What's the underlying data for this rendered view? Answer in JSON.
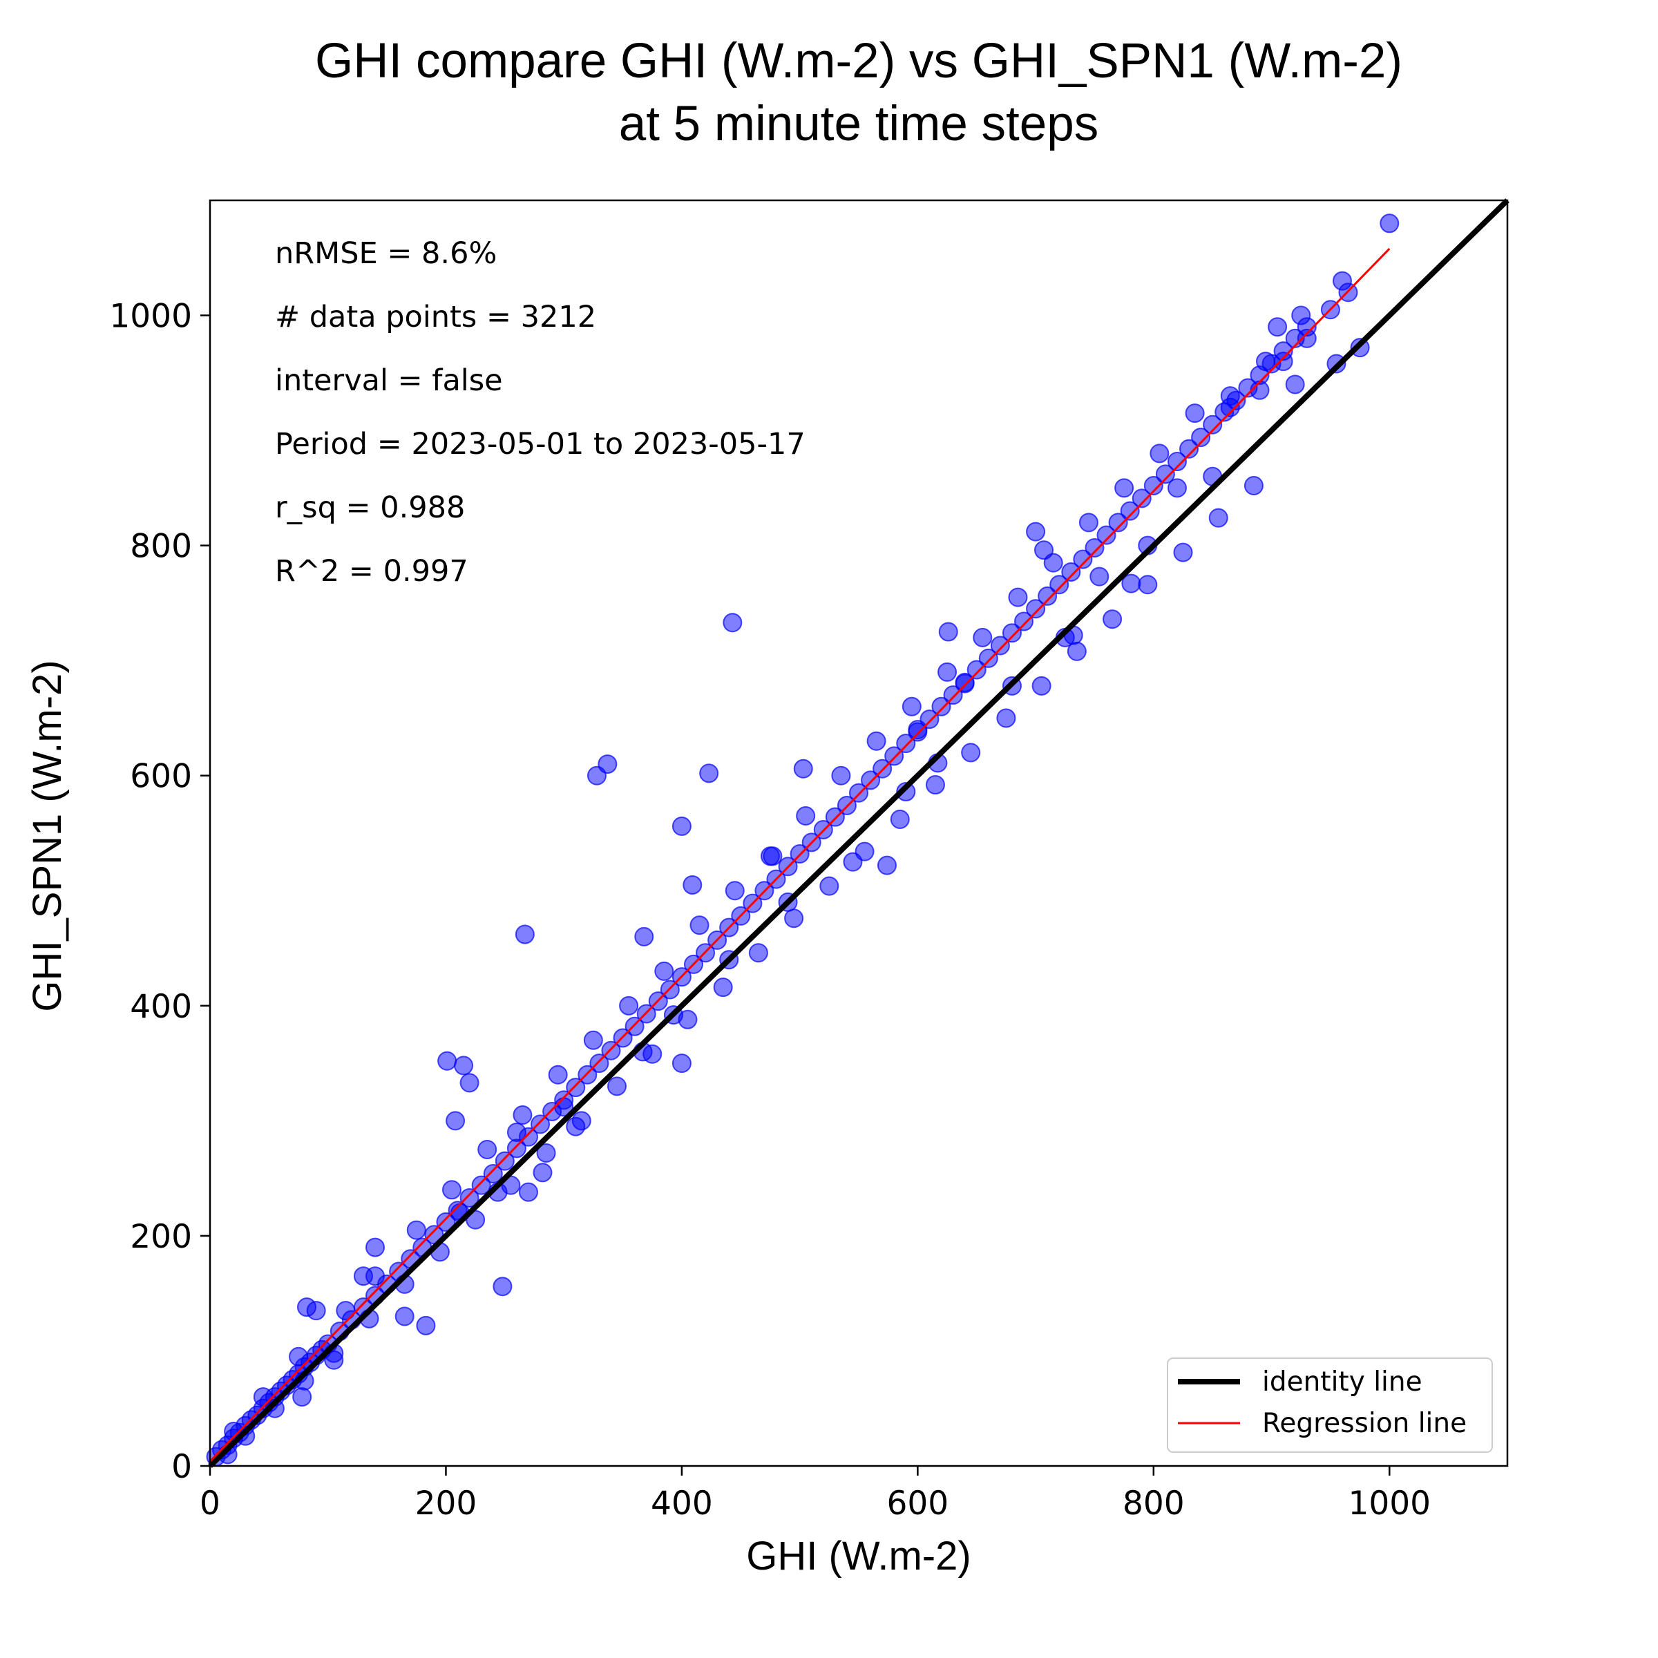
{
  "chart_data": {
    "type": "scatter",
    "title_lines": [
      "GHI compare GHI (W.m-2) vs GHI_SPN1 (W.m-2)",
      "at 5 minute time steps"
    ],
    "xlabel": "GHI (W.m-2)",
    "ylabel": "GHI_SPN1 (W.m-2)",
    "xlim": [
      0,
      1100
    ],
    "ylim": [
      0,
      1100
    ],
    "xticks": [
      0,
      200,
      400,
      600,
      800,
      1000
    ],
    "yticks": [
      0,
      200,
      400,
      600,
      800,
      1000
    ],
    "xtick_labels": [
      "0",
      "200",
      "400",
      "600",
      "800",
      "1000"
    ],
    "ytick_labels": [
      "0",
      "200",
      "400",
      "600",
      "800",
      "1000"
    ],
    "grid": false,
    "legend_position": "lower-right",
    "marker_color": "#0000ff",
    "annotations": [
      "nRMSE = 8.6%",
      "# data points = 3212",
      "interval = false",
      "Period = 2023-05-01 to 2023-05-17",
      "r_sq = 0.988",
      "R^2 = 0.997"
    ],
    "series": [
      {
        "name": "identity line",
        "kind": "line",
        "color": "#000000",
        "x": [
          0,
          1100
        ],
        "y": [
          0,
          1100
        ]
      },
      {
        "name": "Regression line",
        "kind": "line",
        "color": "#ff0000",
        "x": [
          0,
          1000
        ],
        "y": [
          4,
          1058
        ]
      },
      {
        "kind": "scatter",
        "color": "#0000ff",
        "points": [
          [
            5,
            8
          ],
          [
            10,
            14
          ],
          [
            15,
            18
          ],
          [
            20,
            24
          ],
          [
            25,
            29
          ],
          [
            30,
            35
          ],
          [
            35,
            40
          ],
          [
            40,
            44
          ],
          [
            45,
            50
          ],
          [
            50,
            55
          ],
          [
            55,
            60
          ],
          [
            60,
            65
          ],
          [
            65,
            70
          ],
          [
            70,
            75
          ],
          [
            75,
            80
          ],
          [
            80,
            86
          ],
          [
            85,
            90
          ],
          [
            90,
            96
          ],
          [
            95,
            101
          ],
          [
            100,
            106
          ],
          [
            110,
            117
          ],
          [
            120,
            127
          ],
          [
            130,
            138
          ],
          [
            140,
            148
          ],
          [
            150,
            158
          ],
          [
            160,
            169
          ],
          [
            170,
            180
          ],
          [
            180,
            190
          ],
          [
            190,
            201
          ],
          [
            200,
            212
          ],
          [
            210,
            222
          ],
          [
            220,
            233
          ],
          [
            230,
            244
          ],
          [
            240,
            254
          ],
          [
            250,
            265
          ],
          [
            260,
            276
          ],
          [
            270,
            286
          ],
          [
            280,
            297
          ],
          [
            290,
            308
          ],
          [
            300,
            318
          ],
          [
            310,
            329
          ],
          [
            320,
            340
          ],
          [
            330,
            350
          ],
          [
            340,
            361
          ],
          [
            350,
            372
          ],
          [
            360,
            382
          ],
          [
            370,
            393
          ],
          [
            380,
            404
          ],
          [
            390,
            414
          ],
          [
            400,
            425
          ],
          [
            410,
            436
          ],
          [
            420,
            446
          ],
          [
            430,
            457
          ],
          [
            440,
            468
          ],
          [
            450,
            478
          ],
          [
            460,
            489
          ],
          [
            470,
            500
          ],
          [
            480,
            510
          ],
          [
            490,
            521
          ],
          [
            500,
            532
          ],
          [
            510,
            542
          ],
          [
            520,
            553
          ],
          [
            530,
            564
          ],
          [
            540,
            574
          ],
          [
            550,
            585
          ],
          [
            560,
            596
          ],
          [
            570,
            606
          ],
          [
            580,
            617
          ],
          [
            590,
            628
          ],
          [
            600,
            638
          ],
          [
            610,
            649
          ],
          [
            620,
            660
          ],
          [
            630,
            670
          ],
          [
            640,
            681
          ],
          [
            650,
            692
          ],
          [
            660,
            702
          ],
          [
            670,
            713
          ],
          [
            680,
            724
          ],
          [
            690,
            734
          ],
          [
            700,
            745
          ],
          [
            710,
            756
          ],
          [
            720,
            766
          ],
          [
            730,
            777
          ],
          [
            740,
            788
          ],
          [
            750,
            798
          ],
          [
            760,
            809
          ],
          [
            770,
            820
          ],
          [
            780,
            830
          ],
          [
            790,
            841
          ],
          [
            800,
            852
          ],
          [
            810,
            862
          ],
          [
            820,
            873
          ],
          [
            830,
            884
          ],
          [
            840,
            894
          ],
          [
            850,
            905
          ],
          [
            860,
            916
          ],
          [
            870,
            926
          ],
          [
            880,
            937
          ],
          [
            890,
            948
          ],
          [
            900,
            958
          ],
          [
            910,
            969
          ],
          [
            920,
            980
          ],
          [
            930,
            990
          ],
          [
            15,
            10
          ],
          [
            30,
            26
          ],
          [
            55,
            50
          ],
          [
            80,
            74
          ],
          [
            105,
            98
          ],
          [
            135,
            128
          ],
          [
            165,
            158
          ],
          [
            195,
            186
          ],
          [
            225,
            214
          ],
          [
            255,
            244
          ],
          [
            285,
            272
          ],
          [
            315,
            300
          ],
          [
            345,
            330
          ],
          [
            375,
            358
          ],
          [
            405,
            388
          ],
          [
            435,
            416
          ],
          [
            465,
            446
          ],
          [
            495,
            476
          ],
          [
            525,
            504
          ],
          [
            555,
            534
          ],
          [
            585,
            562
          ],
          [
            615,
            592
          ],
          [
            645,
            620
          ],
          [
            675,
            650
          ],
          [
            705,
            678
          ],
          [
            735,
            708
          ],
          [
            765,
            736
          ],
          [
            795,
            766
          ],
          [
            825,
            794
          ],
          [
            855,
            824
          ],
          [
            885,
            852
          ],
          [
            20,
            30
          ],
          [
            45,
            60
          ],
          [
            75,
            95
          ],
          [
            115,
            135
          ],
          [
            140,
            165
          ],
          [
            175,
            205
          ],
          [
            205,
            240
          ],
          [
            235,
            275
          ],
          [
            265,
            305
          ],
          [
            295,
            340
          ],
          [
            325,
            370
          ],
          [
            355,
            400
          ],
          [
            385,
            430
          ],
          [
            415,
            470
          ],
          [
            445,
            500
          ],
          [
            475,
            530
          ],
          [
            505,
            565
          ],
          [
            535,
            600
          ],
          [
            565,
            630
          ],
          [
            595,
            660
          ],
          [
            625,
            690
          ],
          [
            655,
            720
          ],
          [
            685,
            755
          ],
          [
            715,
            785
          ],
          [
            745,
            820
          ],
          [
            775,
            850
          ],
          [
            805,
            880
          ],
          [
            835,
            915
          ],
          [
            865,
            930
          ],
          [
            895,
            960
          ],
          [
            925,
            1000
          ],
          [
            960,
            1030
          ],
          [
            965,
            1020
          ],
          [
            950,
            1005
          ],
          [
            1000,
            1080
          ],
          [
            975,
            972
          ],
          [
            955,
            958
          ],
          [
            850,
            860
          ],
          [
            820,
            850
          ],
          [
            443,
            733
          ],
          [
            337,
            610
          ],
          [
            328,
            600
          ],
          [
            423,
            602
          ],
          [
            400,
            556
          ],
          [
            267,
            462
          ],
          [
            201,
            352
          ],
          [
            215,
            348
          ],
          [
            220,
            333
          ],
          [
            208,
            300
          ],
          [
            248,
            156
          ],
          [
            183,
            122
          ],
          [
            82,
            138
          ],
          [
            90,
            135
          ],
          [
            78,
            60
          ],
          [
            105,
            92
          ],
          [
            130,
            165
          ],
          [
            140,
            190
          ],
          [
            165,
            130
          ],
          [
            212,
            220
          ],
          [
            244,
            238
          ],
          [
            282,
            255
          ],
          [
            270,
            238
          ],
          [
            367,
            360
          ],
          [
            400,
            350
          ],
          [
            393,
            392
          ],
          [
            409,
            505
          ],
          [
            368,
            460
          ],
          [
            440,
            440
          ],
          [
            477,
            530
          ],
          [
            503,
            606
          ],
          [
            574,
            522
          ],
          [
            617,
            611
          ],
          [
            626,
            725
          ],
          [
            700,
            812
          ],
          [
            707,
            796
          ],
          [
            725,
            720
          ],
          [
            732,
            722
          ],
          [
            795,
            800
          ],
          [
            781,
            767
          ],
          [
            754,
            773
          ],
          [
            600,
            640
          ],
          [
            640,
            680
          ],
          [
            680,
            678
          ],
          [
            490,
            490
          ],
          [
            545,
            525
          ],
          [
            590,
            586
          ],
          [
            310,
            295
          ],
          [
            300,
            312
          ],
          [
            260,
            290
          ],
          [
            920,
            940
          ],
          [
            930,
            980
          ],
          [
            905,
            990
          ],
          [
            910,
            960
          ],
          [
            865,
            920
          ],
          [
            890,
            935
          ]
        ]
      }
    ]
  }
}
